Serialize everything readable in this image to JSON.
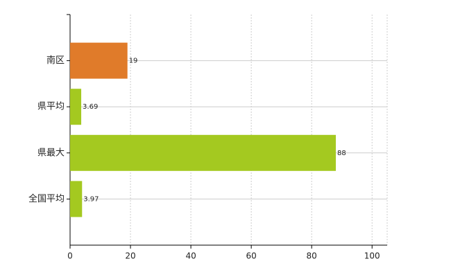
{
  "chart_data": {
    "type": "hbar",
    "categories": [
      "南区",
      "県平均",
      "県最大",
      "全国平均"
    ],
    "values": [
      19,
      3.69,
      88,
      3.97
    ],
    "colors": [
      "#e07b2a",
      "#a4c920",
      "#a4c920",
      "#a4c920"
    ],
    "xlim": [
      0,
      105
    ],
    "xticks": [
      0,
      20,
      40,
      60,
      80,
      100
    ],
    "grid": true
  }
}
